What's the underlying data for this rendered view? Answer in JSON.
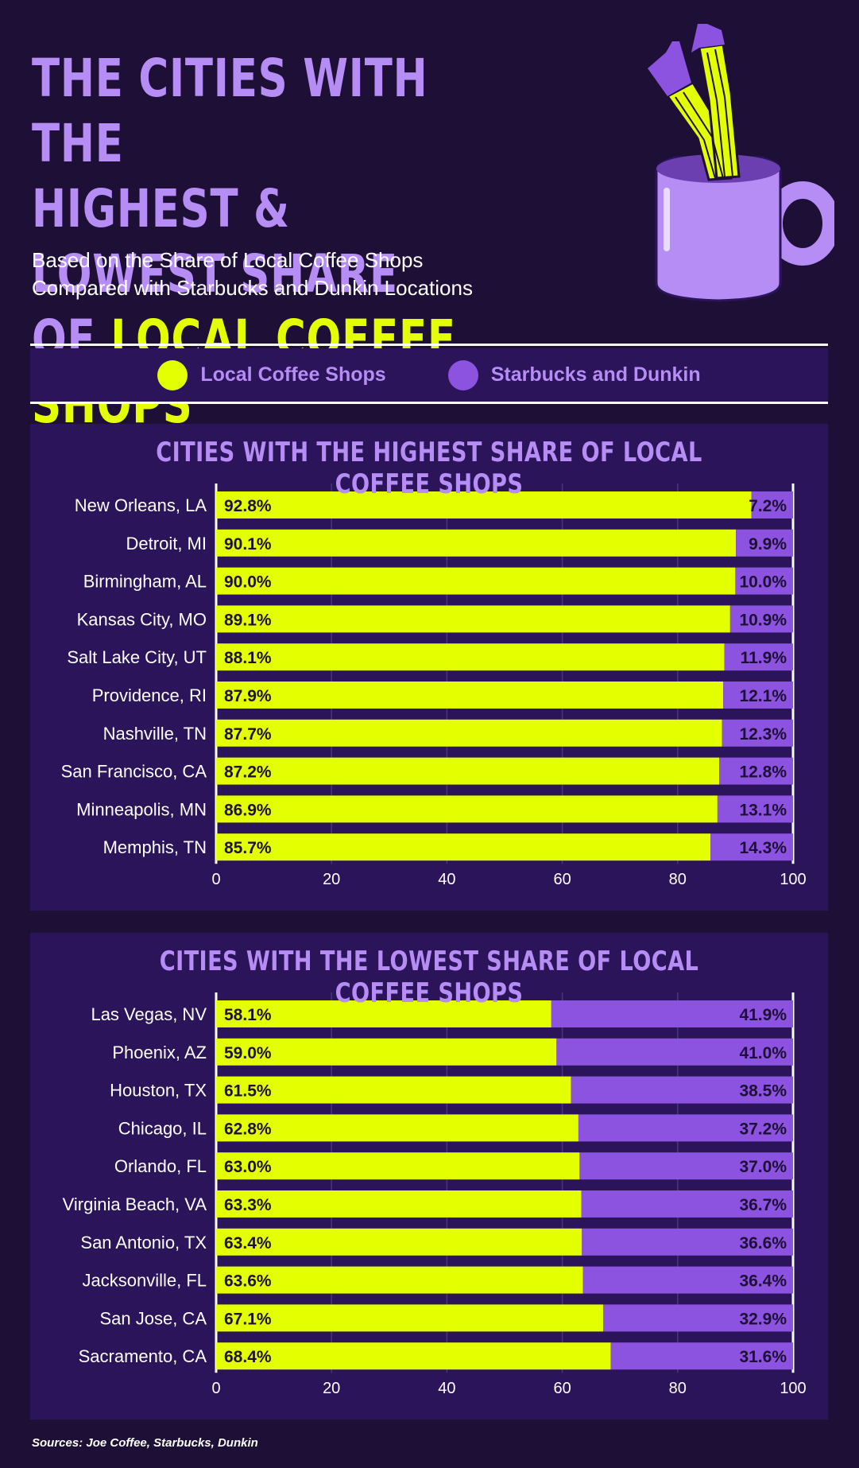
{
  "header": {
    "title_line1": "THE CITIES WITH THE",
    "title_line2": "HIGHEST & LOWEST SHARE",
    "title_line3_prefix": "OF",
    "title_line3_highlight": "LOCAL COFFEE SHOPS",
    "subtitle_line1": "Based on the Share of Local Coffee Shops",
    "subtitle_line2": "Compared with Starbucks and Dunkin Locations"
  },
  "legend": {
    "local_label": "Local Coffee Shops",
    "chain_label": "Starbucks and Dunkin"
  },
  "colors": {
    "local": "#e3ff00",
    "chain": "#8c52e0",
    "background": "#1e0f36",
    "panel": "#2b145a",
    "accent_text": "#b68cf5"
  },
  "icons": [
    "coffee-mug-with-legs-icon"
  ],
  "sources": "Sources: Joe Coffee, Starbucks, Dunkin",
  "chart_data": [
    {
      "type": "bar",
      "orientation": "horizontal",
      "stacked": true,
      "title": "CITIES WITH THE HIGHEST SHARE OF LOCAL COFFEE SHOPS",
      "categories": [
        "New Orleans, LA",
        "Detroit, MI",
        "Birmingham, AL",
        "Kansas City, MO",
        "Salt Lake City, UT",
        "Providence, RI",
        "Nashville, TN",
        "San Francisco, CA",
        "Minneapolis, MN",
        "Memphis, TN"
      ],
      "series": [
        {
          "name": "Local Coffee Shops",
          "values": [
            92.8,
            90.1,
            90.0,
            89.1,
            88.1,
            87.9,
            87.7,
            87.2,
            86.9,
            85.7
          ]
        },
        {
          "name": "Starbucks and Dunkin",
          "values": [
            7.2,
            9.9,
            10.0,
            10.9,
            11.9,
            12.1,
            12.3,
            12.8,
            13.1,
            14.3
          ]
        }
      ],
      "xlim": [
        0,
        100
      ],
      "xticks": [
        0,
        20,
        40,
        60,
        80,
        100
      ],
      "grid": true,
      "value_suffix": "%"
    },
    {
      "type": "bar",
      "orientation": "horizontal",
      "stacked": true,
      "title": "CITIES WITH THE LOWEST SHARE OF LOCAL COFFEE SHOPS",
      "categories": [
        "Las Vegas, NV",
        "Phoenix, AZ",
        "Houston, TX",
        "Chicago, IL",
        "Orlando, FL",
        "Virginia Beach, VA",
        "San Antonio, TX",
        "Jacksonville, FL",
        "San Jose, CA",
        "Sacramento, CA"
      ],
      "series": [
        {
          "name": "Local Coffee Shops",
          "values": [
            58.1,
            59.0,
            61.5,
            62.8,
            63.0,
            63.3,
            63.4,
            63.6,
            67.1,
            68.4
          ]
        },
        {
          "name": "Starbucks and Dunkin",
          "values": [
            41.9,
            41.0,
            38.5,
            37.2,
            37.0,
            36.7,
            36.6,
            36.4,
            32.9,
            31.6
          ]
        }
      ],
      "xlim": [
        0,
        100
      ],
      "xticks": [
        0,
        20,
        40,
        60,
        80,
        100
      ],
      "grid": true,
      "value_suffix": "%"
    }
  ]
}
